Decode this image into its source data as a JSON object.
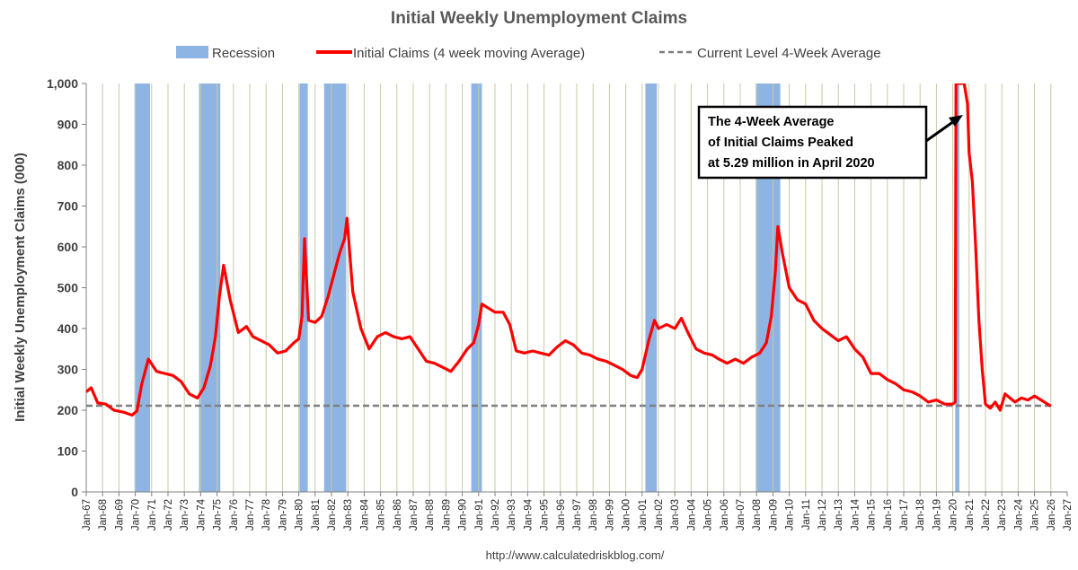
{
  "chart_data": {
    "type": "line",
    "title": "Initial Weekly Unemployment Claims",
    "ylabel": "Initial Weekly Unemployment Claims (000)",
    "xlabel": "",
    "ylim": [
      0,
      1000
    ],
    "xlim_years": [
      1967,
      2027
    ],
    "y_ticks": [
      "0",
      "100",
      "200",
      "300",
      "400",
      "500",
      "600",
      "700",
      "800",
      "900",
      "1,000"
    ],
    "x_ticks": [
      "Jan-67",
      "Jan-68",
      "Jan-69",
      "Jan-70",
      "Jan-71",
      "Jan-72",
      "Jan-73",
      "Jan-74",
      "Jan-75",
      "Jan-76",
      "Jan-77",
      "Jan-78",
      "Jan-79",
      "Jan-80",
      "Jan-81",
      "Jan-82",
      "Jan-83",
      "Jan-84",
      "Jan-85",
      "Jan-86",
      "Jan-87",
      "Jan-88",
      "Jan-89",
      "Jan-90",
      "Jan-91",
      "Jan-92",
      "Jan-93",
      "Jan-94",
      "Jan-95",
      "Jan-96",
      "Jan-97",
      "Jan-98",
      "Jan-99",
      "Jan-00",
      "Jan-01",
      "Jan-02",
      "Jan-03",
      "Jan-04",
      "Jan-05",
      "Jan-06",
      "Jan-07",
      "Jan-08",
      "Jan-09",
      "Jan-10",
      "Jan-11",
      "Jan-12",
      "Jan-13",
      "Jan-14",
      "Jan-15",
      "Jan-16",
      "Jan-17",
      "Jan-18",
      "Jan-19",
      "Jan-20",
      "Jan-21",
      "Jan-22",
      "Jan-23",
      "Jan-24",
      "Jan-25",
      "Jan-26",
      "Jan-27"
    ],
    "legend": {
      "placement": "top",
      "entries": [
        {
          "label": "Recession",
          "color": "#8eb4e3"
        },
        {
          "label": "Initial Claims (4 week moving Average)",
          "color": "#ff0000"
        },
        {
          "label": "Current Level 4-Week Average",
          "color": "#7f7f7f"
        }
      ]
    },
    "grid": {
      "vertical": true,
      "color": "#c9c9a3"
    },
    "recessions": [
      {
        "start": 1969.95,
        "end": 1970.9
      },
      {
        "start": 1973.9,
        "end": 1975.2
      },
      {
        "start": 1980.05,
        "end": 1980.55
      },
      {
        "start": 1981.55,
        "end": 1982.9
      },
      {
        "start": 1990.55,
        "end": 1991.2
      },
      {
        "start": 2001.2,
        "end": 2001.9
      },
      {
        "start": 2007.95,
        "end": 2009.45
      },
      {
        "start": 2020.15,
        "end": 2020.4
      }
    ],
    "current_level": 211,
    "series": [
      {
        "name": "Initial Claims (4 week moving Average)",
        "color": "#ff0000",
        "x": [
          1967.0,
          1967.3,
          1967.7,
          1968.2,
          1968.7,
          1969.3,
          1969.8,
          1970.1,
          1970.4,
          1970.8,
          1971.3,
          1971.8,
          1972.3,
          1972.8,
          1973.3,
          1973.8,
          1974.2,
          1974.6,
          1974.9,
          1975.15,
          1975.4,
          1975.8,
          1976.3,
          1976.8,
          1977.2,
          1977.7,
          1978.2,
          1978.7,
          1979.2,
          1979.7,
          1980.0,
          1980.2,
          1980.35,
          1980.6,
          1981.0,
          1981.4,
          1981.8,
          1982.2,
          1982.5,
          1982.8,
          1982.95,
          1983.3,
          1983.8,
          1984.3,
          1984.8,
          1985.3,
          1985.8,
          1986.3,
          1986.8,
          1987.3,
          1987.8,
          1988.3,
          1988.8,
          1989.3,
          1989.8,
          1990.3,
          1990.7,
          1991.0,
          1991.2,
          1991.6,
          1992.0,
          1992.5,
          1992.9,
          1993.3,
          1993.8,
          1994.3,
          1994.8,
          1995.3,
          1995.8,
          1996.3,
          1996.8,
          1997.3,
          1997.8,
          1998.3,
          1998.8,
          1999.3,
          1999.8,
          2000.3,
          2000.7,
          2001.0,
          2001.4,
          2001.75,
          2002.0,
          2002.5,
          2003.0,
          2003.4,
          2003.8,
          2004.3,
          2004.8,
          2005.3,
          2005.7,
          2006.2,
          2006.7,
          2007.2,
          2007.7,
          2008.2,
          2008.6,
          2008.9,
          2009.15,
          2009.3,
          2009.6,
          2010.0,
          2010.5,
          2011.0,
          2011.5,
          2012.0,
          2012.5,
          2013.0,
          2013.5,
          2014.0,
          2014.5,
          2015.0,
          2015.5,
          2016.0,
          2016.5,
          2017.0,
          2017.5,
          2018.0,
          2018.5,
          2019.0,
          2019.5,
          2020.0,
          2020.15,
          2020.2,
          2020.25,
          2020.35,
          2020.5,
          2020.7,
          2020.9,
          2021.0,
          2021.2,
          2021.4,
          2021.6,
          2021.8,
          2022.0,
          2022.3,
          2022.6,
          2022.9,
          2023.2,
          2023.5,
          2023.8,
          2024.2,
          2024.6,
          2025.0,
          2025.4,
          2025.8,
          2026.0
        ],
        "values": [
          245,
          255,
          218,
          215,
          200,
          195,
          188,
          198,
          265,
          325,
          295,
          290,
          285,
          270,
          240,
          230,
          255,
          310,
          380,
          480,
          555,
          470,
          390,
          405,
          380,
          370,
          360,
          340,
          345,
          365,
          375,
          430,
          620,
          420,
          415,
          430,
          480,
          540,
          585,
          620,
          670,
          490,
          400,
          350,
          380,
          390,
          380,
          375,
          380,
          350,
          320,
          315,
          305,
          295,
          320,
          350,
          365,
          410,
          460,
          450,
          440,
          440,
          410,
          345,
          340,
          345,
          340,
          335,
          355,
          370,
          360,
          340,
          335,
          325,
          320,
          310,
          300,
          285,
          280,
          300,
          370,
          420,
          400,
          410,
          400,
          425,
          390,
          350,
          340,
          335,
          325,
          315,
          325,
          315,
          330,
          340,
          365,
          430,
          540,
          650,
          580,
          500,
          470,
          460,
          420,
          400,
          385,
          370,
          380,
          350,
          330,
          290,
          290,
          275,
          265,
          250,
          245,
          235,
          220,
          225,
          215,
          215,
          220,
          1000,
          1000,
          1000,
          1000,
          1000,
          950,
          830,
          760,
          600,
          420,
          300,
          215,
          205,
          220,
          200,
          240,
          230,
          220,
          230,
          225,
          235,
          225,
          215,
          210
        ]
      }
    ],
    "annotation": {
      "lines": [
        "The 4-Week Average",
        "of Initial Claims Peaked",
        "at 5.29 million in April 2020"
      ]
    },
    "source": "http://www.calculatedriskblog.com/"
  }
}
